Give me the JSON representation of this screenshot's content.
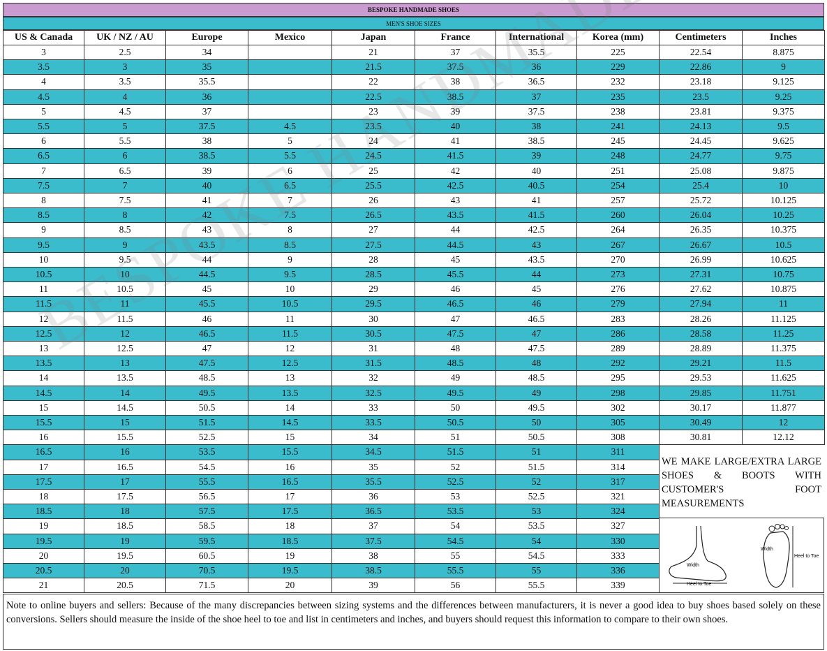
{
  "header": {
    "title": "BESPOKE HANDMADE SHOES",
    "subtitle": "MEN'S SHOE SIZES"
  },
  "table": {
    "columns": [
      "US & Canada",
      "UK / NZ / AU",
      "Europe",
      "Mexico",
      "Japan",
      "France",
      "International",
      "Korea (mm)",
      "Centimeters",
      "Inches"
    ],
    "rows": [
      [
        3,
        2.5,
        34,
        null,
        21,
        37,
        35.5,
        225,
        22.54,
        8.875
      ],
      [
        3.5,
        3,
        35,
        null,
        21.5,
        37.5,
        36,
        229,
        22.86,
        9
      ],
      [
        4,
        3.5,
        35.5,
        null,
        22,
        38,
        36.5,
        232,
        23.18,
        9.125
      ],
      [
        4.5,
        4,
        36,
        null,
        22.5,
        38.5,
        37,
        235,
        23.5,
        9.25
      ],
      [
        5,
        4.5,
        37,
        null,
        23,
        39,
        37.5,
        238,
        23.81,
        9.375
      ],
      [
        5.5,
        5,
        37.5,
        4.5,
        23.5,
        40,
        38,
        241,
        24.13,
        9.5
      ],
      [
        6,
        5.5,
        38,
        5,
        24,
        41,
        38.5,
        245,
        24.45,
        9.625
      ],
      [
        6.5,
        6,
        38.5,
        5.5,
        24.5,
        41.5,
        39,
        248,
        24.77,
        9.75
      ],
      [
        7,
        6.5,
        39,
        6,
        25,
        42,
        40,
        251,
        25.08,
        9.875
      ],
      [
        7.5,
        7,
        40,
        6.5,
        25.5,
        42.5,
        40.5,
        254,
        25.4,
        10
      ],
      [
        8,
        7.5,
        41,
        7,
        26,
        43,
        41,
        257,
        25.72,
        10.125
      ],
      [
        8.5,
        8,
        42,
        7.5,
        26.5,
        43.5,
        41.5,
        260,
        26.04,
        10.25
      ],
      [
        9,
        8.5,
        43,
        8,
        27,
        44,
        42.5,
        264,
        26.35,
        10.375
      ],
      [
        9.5,
        9,
        43.5,
        8.5,
        27.5,
        44.5,
        43,
        267,
        26.67,
        10.5
      ],
      [
        10,
        9.5,
        44,
        9,
        28,
        45,
        43.5,
        270,
        26.99,
        10.625
      ],
      [
        10.5,
        10,
        44.5,
        9.5,
        28.5,
        45.5,
        44,
        273,
        27.31,
        10.75
      ],
      [
        11,
        10.5,
        45,
        10,
        29,
        46,
        45,
        276,
        27.62,
        10.875
      ],
      [
        11.5,
        11,
        45.5,
        10.5,
        29.5,
        46.5,
        46,
        279,
        27.94,
        11
      ],
      [
        12,
        11.5,
        46,
        11,
        30,
        47,
        46.5,
        283,
        28.26,
        11.125
      ],
      [
        12.5,
        12,
        46.5,
        11.5,
        30.5,
        47.5,
        47,
        286,
        28.58,
        11.25
      ],
      [
        13,
        12.5,
        47,
        12,
        31,
        48,
        47.5,
        289,
        28.89,
        11.375
      ],
      [
        13.5,
        13,
        47.5,
        12.5,
        31.5,
        48.5,
        48,
        292,
        29.21,
        11.5
      ],
      [
        14,
        13.5,
        48.5,
        13,
        32,
        49,
        48.5,
        295,
        29.53,
        11.625
      ],
      [
        14.5,
        14,
        49.5,
        13.5,
        32.5,
        49.5,
        49,
        298,
        29.85,
        11.751
      ],
      [
        15,
        14.5,
        50.5,
        14,
        33,
        50,
        49.5,
        302,
        30.17,
        11.877
      ],
      [
        15.5,
        15,
        51.5,
        14.5,
        33.5,
        50.5,
        50,
        305,
        30.49,
        12
      ],
      [
        16,
        15.5,
        52.5,
        15,
        34,
        51,
        50.5,
        308,
        30.81,
        12.12
      ],
      [
        16.5,
        16,
        53.5,
        15.5,
        34.5,
        51.5,
        51,
        311
      ],
      [
        17,
        16.5,
        54.5,
        16,
        35,
        52,
        51.5,
        314
      ],
      [
        17.5,
        17,
        55.5,
        16.5,
        35.5,
        52.5,
        52,
        317
      ],
      [
        18,
        17.5,
        56.5,
        17,
        36,
        53,
        52.5,
        321
      ],
      [
        18.5,
        18,
        57.5,
        17.5,
        36.5,
        53.5,
        53,
        324
      ],
      [
        19,
        18.5,
        58.5,
        18,
        37,
        54,
        53.5,
        327
      ],
      [
        19.5,
        19,
        59.5,
        18.5,
        37.5,
        54.5,
        54,
        330
      ],
      [
        20,
        19.5,
        60.5,
        19,
        38,
        55,
        54.5,
        333
      ],
      [
        20.5,
        20,
        70.5,
        19.5,
        38.5,
        55.5,
        55,
        336
      ],
      [
        21,
        20.5,
        71.5,
        20,
        39,
        56,
        55.5,
        339
      ]
    ]
  },
  "promo": "WE MAKE LARGE/EXTRA LARGE SHOES & BOOTS WITH CUSTOMER'S FOOT MEASUREMENTS",
  "diagram": {
    "side_width": "Width",
    "side_length": "Heel to Toe",
    "sole_width": "Width",
    "sole_length": "Heel to Toe"
  },
  "note": "Note to online buyers and sellers: Because of the many discrepancies between sizing systems and the differences between manufacturers, it is never a good idea to buy shoes based solely on these conversions. Sellers should measure the inside of the shoe heel to toe and list in centimeters and inches, and buyers should request this information to compare to their own shoes.",
  "watermark": "BESPOKE HANDMADE SHOES"
}
